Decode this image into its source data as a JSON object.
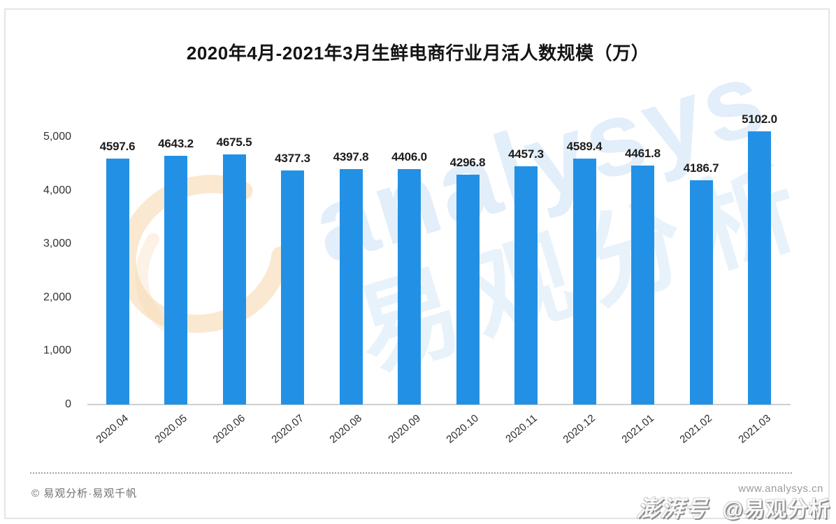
{
  "chart_data": {
    "type": "bar",
    "title": "2020年4月-2021年3月生鲜电商行业月活人数规模（万）",
    "categories": [
      "2020.04",
      "2020.05",
      "2020.06",
      "2020.07",
      "2020.08",
      "2020.09",
      "2020.10",
      "2020.11",
      "2020.12",
      "2021.01",
      "2021.02",
      "2021.03"
    ],
    "values": [
      4597.6,
      4643.2,
      4675.5,
      4377.3,
      4397.8,
      4406.0,
      4296.8,
      4457.3,
      4589.4,
      4461.8,
      4186.7,
      5102.0
    ],
    "xlabel": "",
    "ylabel": "",
    "ylim": [
      0,
      5000
    ],
    "ytick_values": [
      0,
      1000,
      2000,
      3000,
      4000,
      5000
    ],
    "ytick_labels": [
      "0",
      "1,000",
      "2,000",
      "3,000",
      "4,000",
      "5,000"
    ],
    "grid": false,
    "legend": "none",
    "value_label_decimals": 1,
    "bar_color": "#2291e5"
  },
  "watermark": {
    "brand_latin": "analysys",
    "brand_cjk": "易观分析",
    "logo_icon": "analysys-swirl-logo",
    "swirl_color": "#f3c890"
  },
  "footer": {
    "copyright": "© 易观分析·易观千帆",
    "website": "www.analysys.cn",
    "platform_badge": "澎湃号",
    "account_handle": "@易观分析"
  }
}
